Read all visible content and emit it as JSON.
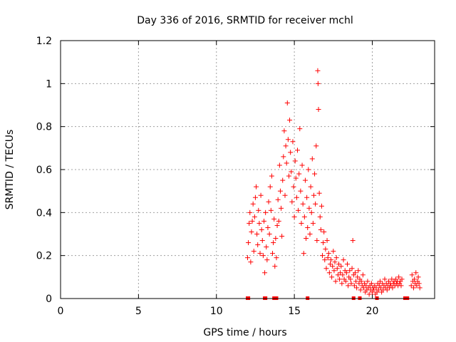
{
  "chart_data": {
    "type": "scatter",
    "title": "Day 336 of 2016, SRMTID for receiver mchl",
    "xlabel": "GPS time / hours",
    "ylabel": "SRMTID / TECUs",
    "xlim": [
      0,
      24
    ],
    "ylim": [
      0,
      1.2
    ],
    "xticks": [
      "0",
      "5",
      "10",
      "15",
      "20"
    ],
    "yticks": [
      "0",
      "0.2",
      "0.4",
      "0.6",
      "0.8",
      "1",
      "1.2"
    ],
    "grid": true,
    "marker": "plus",
    "color": "#ff0000",
    "series": [
      {
        "name": "SRMTID",
        "points": [
          [
            12.0,
            0.19
          ],
          [
            12.05,
            0.26
          ],
          [
            12.1,
            0.35
          ],
          [
            12.15,
            0.4
          ],
          [
            12.2,
            0.17
          ],
          [
            12.25,
            0.31
          ],
          [
            12.3,
            0.36
          ],
          [
            12.35,
            0.44
          ],
          [
            12.4,
            0.22
          ],
          [
            12.45,
            0.38
          ],
          [
            12.5,
            0.47
          ],
          [
            12.55,
            0.52
          ],
          [
            12.6,
            0.3
          ],
          [
            12.65,
            0.25
          ],
          [
            12.7,
            0.41
          ],
          [
            12.75,
            0.35
          ],
          [
            12.8,
            0.21
          ],
          [
            12.85,
            0.48
          ],
          [
            12.9,
            0.32
          ],
          [
            12.95,
            0.27
          ],
          [
            13.0,
            0.2
          ],
          [
            13.05,
            0.36
          ],
          [
            13.1,
            0.12
          ],
          [
            13.15,
            0.4
          ],
          [
            13.2,
            0.24
          ],
          [
            13.25,
            0.18
          ],
          [
            13.3,
            0.33
          ],
          [
            13.35,
            0.45
          ],
          [
            13.4,
            0.3
          ],
          [
            13.45,
            0.52
          ],
          [
            13.5,
            0.41
          ],
          [
            13.55,
            0.57
          ],
          [
            13.6,
            0.21
          ],
          [
            13.65,
            0.26
          ],
          [
            13.7,
            0.37
          ],
          [
            13.75,
            0.15
          ],
          [
            13.8,
            0.28
          ],
          [
            13.85,
            0.19
          ],
          [
            13.9,
            0.34
          ],
          [
            13.95,
            0.46
          ],
          [
            14.0,
            0.36
          ],
          [
            14.05,
            0.62
          ],
          [
            14.1,
            0.5
          ],
          [
            14.15,
            0.42
          ],
          [
            14.2,
            0.29
          ],
          [
            14.25,
            0.55
          ],
          [
            14.3,
            0.66
          ],
          [
            14.35,
            0.78
          ],
          [
            14.4,
            0.48
          ],
          [
            14.45,
            0.71
          ],
          [
            14.5,
            0.63
          ],
          [
            14.55,
            0.91
          ],
          [
            14.6,
            0.74
          ],
          [
            14.65,
            0.57
          ],
          [
            14.7,
            0.83
          ],
          [
            14.75,
            0.68
          ],
          [
            14.8,
            0.59
          ],
          [
            14.85,
            0.45
          ],
          [
            14.9,
            0.73
          ],
          [
            14.95,
            0.52
          ],
          [
            15.0,
            0.38
          ],
          [
            15.05,
            0.64
          ],
          [
            15.1,
            0.56
          ],
          [
            15.15,
            0.47
          ],
          [
            15.2,
            0.69
          ],
          [
            15.25,
            0.41
          ],
          [
            15.3,
            0.58
          ],
          [
            15.35,
            0.79
          ],
          [
            15.4,
            0.5
          ],
          [
            15.45,
            0.35
          ],
          [
            15.5,
            0.62
          ],
          [
            15.55,
            0.44
          ],
          [
            15.6,
            0.21
          ],
          [
            15.65,
            0.38
          ],
          [
            15.7,
            0.55
          ],
          [
            15.75,
            0.28
          ],
          [
            15.8,
            0.47
          ],
          [
            15.85,
            0.33
          ],
          [
            15.9,
            0.6
          ],
          [
            15.95,
            0.42
          ],
          [
            16.0,
            0.3
          ],
          [
            16.05,
            0.52
          ],
          [
            16.1,
            0.4
          ],
          [
            16.15,
            0.65
          ],
          [
            16.2,
            0.35
          ],
          [
            16.25,
            0.48
          ],
          [
            16.3,
            0.58
          ],
          [
            16.35,
            0.44
          ],
          [
            16.4,
            0.71
          ],
          [
            16.45,
            0.27
          ],
          [
            16.5,
            1.06
          ],
          [
            16.52,
            1.0
          ],
          [
            16.55,
            0.88
          ],
          [
            16.6,
            0.49
          ],
          [
            16.65,
            0.38
          ],
          [
            16.7,
            0.32
          ],
          [
            16.75,
            0.43
          ],
          [
            16.8,
            0.2
          ],
          [
            16.85,
            0.26
          ],
          [
            16.9,
            0.31
          ],
          [
            16.95,
            0.18
          ],
          [
            17.0,
            0.23
          ],
          [
            17.05,
            0.14
          ],
          [
            17.1,
            0.27
          ],
          [
            17.15,
            0.19
          ],
          [
            17.2,
            0.21
          ],
          [
            17.25,
            0.12
          ],
          [
            17.3,
            0.16
          ],
          [
            17.35,
            0.18
          ],
          [
            17.4,
            0.1
          ],
          [
            17.45,
            0.15
          ],
          [
            17.5,
            0.22
          ],
          [
            17.55,
            0.13
          ],
          [
            17.6,
            0.17
          ],
          [
            17.65,
            0.08
          ],
          [
            17.7,
            0.19
          ],
          [
            17.75,
            0.14
          ],
          [
            17.8,
            0.11
          ],
          [
            17.85,
            0.16
          ],
          [
            17.9,
            0.09
          ],
          [
            17.95,
            0.12
          ],
          [
            18.0,
            0.15
          ],
          [
            18.05,
            0.07
          ],
          [
            18.1,
            0.11
          ],
          [
            18.15,
            0.18
          ],
          [
            18.2,
            0.09
          ],
          [
            18.25,
            0.13
          ],
          [
            18.3,
            0.08
          ],
          [
            18.35,
            0.12
          ],
          [
            18.4,
            0.16
          ],
          [
            18.45,
            0.06
          ],
          [
            18.5,
            0.1
          ],
          [
            18.55,
            0.13
          ],
          [
            18.6,
            0.09
          ],
          [
            18.65,
            0.07
          ],
          [
            18.7,
            0.14
          ],
          [
            18.75,
            0.27
          ],
          [
            18.8,
            0.11
          ],
          [
            18.85,
            0.06
          ],
          [
            18.9,
            0.12
          ],
          [
            18.95,
            0.08
          ],
          [
            19.0,
            0.05
          ],
          [
            19.05,
            0.1
          ],
          [
            19.1,
            0.13
          ],
          [
            19.15,
            0.07
          ],
          [
            19.2,
            0.09
          ],
          [
            19.25,
            0.04
          ],
          [
            19.3,
            0.08
          ],
          [
            19.35,
            0.06
          ],
          [
            19.4,
            0.11
          ],
          [
            19.45,
            0.05
          ],
          [
            19.5,
            0.07
          ],
          [
            19.55,
            0.03
          ],
          [
            19.6,
            0.06
          ],
          [
            19.65,
            0.04
          ],
          [
            19.7,
            0.08
          ],
          [
            19.75,
            0.05
          ],
          [
            19.8,
            0.02
          ],
          [
            19.85,
            0.06
          ],
          [
            19.9,
            0.04
          ],
          [
            19.95,
            0.07
          ],
          [
            20.0,
            0.03
          ],
          [
            20.05,
            0.05
          ],
          [
            20.1,
            0.04
          ],
          [
            20.15,
            0.06
          ],
          [
            20.2,
            0.02
          ],
          [
            20.25,
            0.05
          ],
          [
            20.3,
            0.03
          ],
          [
            20.35,
            0.07
          ],
          [
            20.4,
            0.04
          ],
          [
            20.45,
            0.06
          ],
          [
            20.5,
            0.08
          ],
          [
            20.55,
            0.05
          ],
          [
            20.6,
            0.03
          ],
          [
            20.65,
            0.07
          ],
          [
            20.7,
            0.04
          ],
          [
            20.75,
            0.06
          ],
          [
            20.8,
            0.09
          ],
          [
            20.85,
            0.05
          ],
          [
            20.9,
            0.07
          ],
          [
            20.95,
            0.04
          ],
          [
            21.0,
            0.06
          ],
          [
            21.05,
            0.08
          ],
          [
            21.1,
            0.05
          ],
          [
            21.15,
            0.07
          ],
          [
            21.2,
            0.06
          ],
          [
            21.25,
            0.09
          ],
          [
            21.3,
            0.05
          ],
          [
            21.35,
            0.07
          ],
          [
            21.4,
            0.08
          ],
          [
            21.45,
            0.06
          ],
          [
            21.5,
            0.09
          ],
          [
            21.55,
            0.07
          ],
          [
            21.6,
            0.08
          ],
          [
            21.65,
            0.06
          ],
          [
            21.7,
            0.1
          ],
          [
            21.75,
            0.07
          ],
          [
            21.8,
            0.08
          ],
          [
            21.85,
            0.06
          ],
          [
            21.9,
            0.09
          ],
          [
            22.5,
            0.06
          ],
          [
            22.55,
            0.11
          ],
          [
            22.6,
            0.08
          ],
          [
            22.65,
            0.05
          ],
          [
            22.7,
            0.09
          ],
          [
            22.75,
            0.07
          ],
          [
            22.8,
            0.12
          ],
          [
            22.85,
            0.06
          ],
          [
            22.9,
            0.08
          ],
          [
            22.95,
            0.1
          ],
          [
            23.0,
            0.07
          ],
          [
            23.05,
            0.05
          ]
        ]
      }
    ],
    "zero_points_x": [
      12.0,
      12.05,
      13.1,
      13.15,
      13.7,
      13.75,
      13.8,
      13.85,
      15.85,
      18.8,
      19.2,
      20.3,
      22.1,
      22.15,
      22.2,
      22.25
    ]
  }
}
